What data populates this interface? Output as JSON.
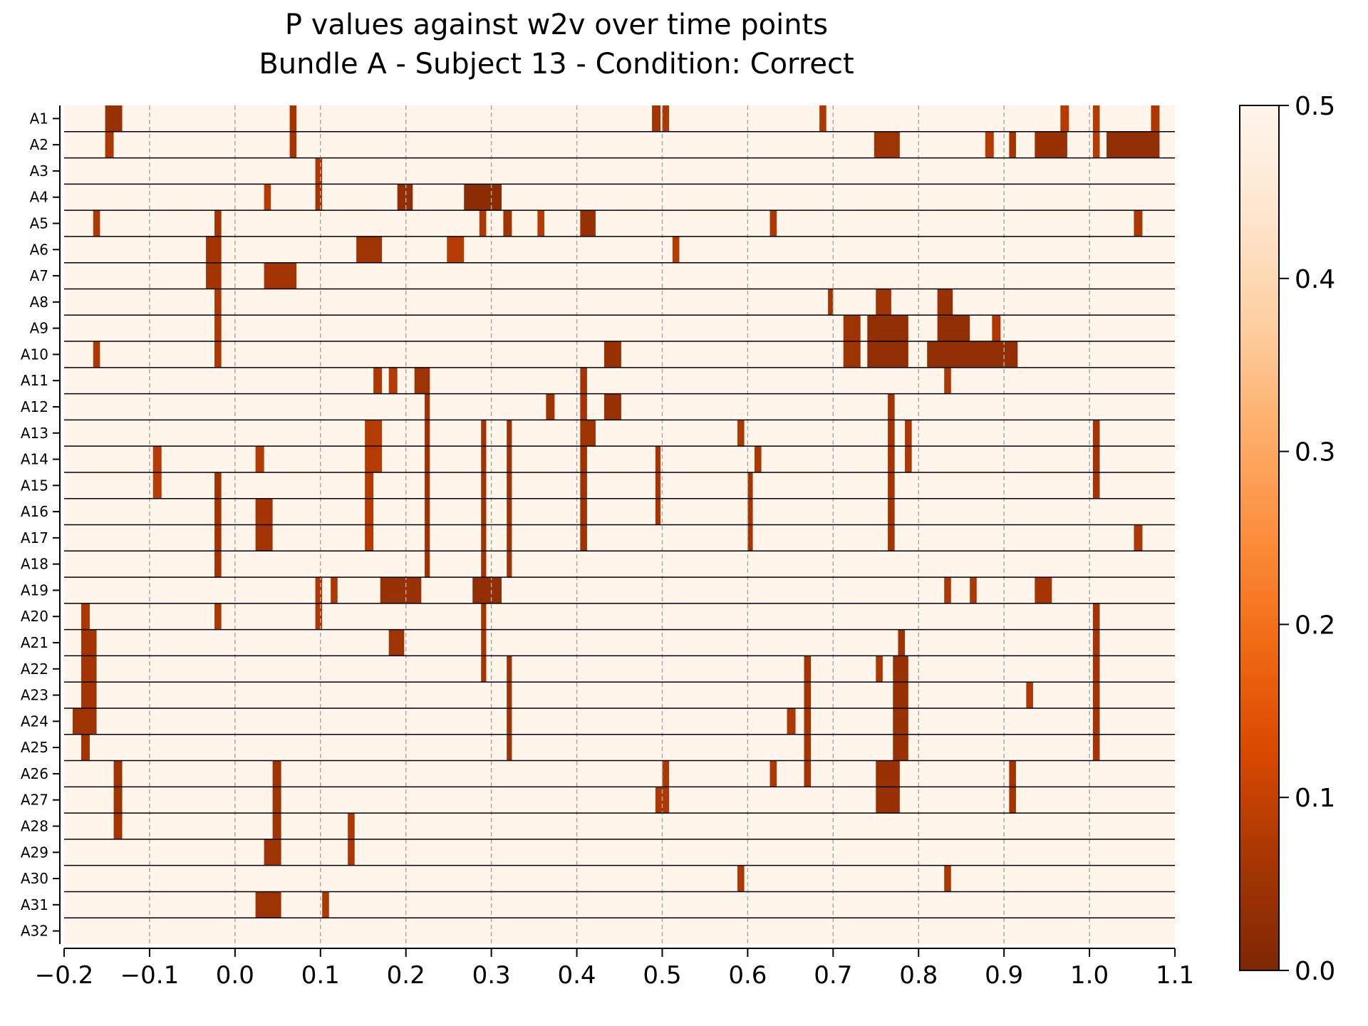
{
  "chart_data": {
    "type": "heatmap",
    "title": "P values against w2v over time points",
    "subtitle": "Bundle A - Subject 13 - Condition: Correct",
    "xlabel": "",
    "ylabel": "",
    "xlim": [
      -0.2,
      1.1
    ],
    "x_ticks": [
      "−0.2",
      "−0.1",
      "0.0",
      "0.1",
      "0.2",
      "0.3",
      "0.4",
      "0.5",
      "0.6",
      "0.7",
      "0.8",
      "0.9",
      "1.0",
      "1.1"
    ],
    "x_tick_values": [
      -0.2,
      -0.1,
      0.0,
      0.1,
      0.2,
      0.3,
      0.4,
      0.5,
      0.6,
      0.7,
      0.8,
      0.9,
      1.0,
      1.1
    ],
    "rows": [
      "A1",
      "A2",
      "A3",
      "A4",
      "A5",
      "A6",
      "A7",
      "A8",
      "A9",
      "A10",
      "A11",
      "A12",
      "A13",
      "A14",
      "A15",
      "A16",
      "A17",
      "A18",
      "A19",
      "A20",
      "A21",
      "A22",
      "A23",
      "A24",
      "A25",
      "A26",
      "A27",
      "A28",
      "A29",
      "A30",
      "A31",
      "A32"
    ],
    "colorbar": {
      "min": 0.0,
      "max": 0.5,
      "ticks": [
        "0.0",
        "0.1",
        "0.2",
        "0.3",
        "0.4",
        "0.5"
      ],
      "tick_values": [
        0.0,
        0.1,
        0.2,
        0.3,
        0.4,
        0.5
      ],
      "colormap": "Oranges_r",
      "stops": [
        "#7f2704",
        "#a63603",
        "#d94801",
        "#f16913",
        "#fd8d3c",
        "#fdae6b",
        "#fdd0a2",
        "#fee6ce",
        "#fff5eb"
      ]
    },
    "background_value": 0.5,
    "grid": "dashed vertical at x ticks",
    "significant_cells": [
      {
        "row": "A1",
        "spans": [
          [
            -0.152,
            -0.132,
            0.04
          ],
          [
            0.064,
            0.072,
            0.06
          ],
          [
            0.488,
            0.498,
            0.06
          ],
          [
            0.5,
            0.508,
            0.07
          ],
          [
            0.684,
            0.692,
            0.07
          ],
          [
            0.966,
            0.976,
            0.08
          ],
          [
            1.004,
            1.012,
            0.08
          ],
          [
            1.072,
            1.082,
            0.07
          ]
        ]
      },
      {
        "row": "A2",
        "spans": [
          [
            -0.152,
            -0.142,
            0.07
          ],
          [
            0.064,
            0.072,
            0.06
          ],
          [
            0.748,
            0.778,
            0.05
          ],
          [
            0.878,
            0.888,
            0.08
          ],
          [
            0.906,
            0.914,
            0.06
          ],
          [
            0.936,
            0.974,
            0.04
          ],
          [
            1.004,
            1.012,
            0.08
          ],
          [
            1.02,
            1.082,
            0.03
          ]
        ]
      },
      {
        "row": "A3",
        "spans": [
          [
            0.094,
            0.102,
            0.07
          ]
        ]
      },
      {
        "row": "A4",
        "spans": [
          [
            0.034,
            0.042,
            0.08
          ],
          [
            0.094,
            0.102,
            0.06
          ],
          [
            0.19,
            0.208,
            0.03
          ],
          [
            0.268,
            0.312,
            0.02
          ]
        ]
      },
      {
        "row": "A5",
        "spans": [
          [
            -0.166,
            -0.158,
            0.07
          ],
          [
            -0.024,
            -0.016,
            0.06
          ],
          [
            0.286,
            0.294,
            0.07
          ],
          [
            0.314,
            0.324,
            0.05
          ],
          [
            0.354,
            0.362,
            0.08
          ],
          [
            0.404,
            0.422,
            0.04
          ],
          [
            0.626,
            0.634,
            0.07
          ],
          [
            1.052,
            1.062,
            0.07
          ]
        ]
      },
      {
        "row": "A6",
        "spans": [
          [
            -0.034,
            -0.016,
            0.06
          ],
          [
            0.142,
            0.172,
            0.05
          ],
          [
            0.248,
            0.268,
            0.08
          ],
          [
            0.512,
            0.52,
            0.08
          ]
        ]
      },
      {
        "row": "A7",
        "spans": [
          [
            -0.034,
            -0.016,
            0.06
          ],
          [
            0.034,
            0.072,
            0.06
          ]
        ]
      },
      {
        "row": "A8",
        "spans": [
          [
            -0.024,
            -0.016,
            0.07
          ],
          [
            0.694,
            0.7,
            0.06
          ],
          [
            0.75,
            0.768,
            0.05
          ],
          [
            0.822,
            0.84,
            0.04
          ]
        ]
      },
      {
        "row": "A9",
        "spans": [
          [
            -0.024,
            -0.016,
            0.07
          ],
          [
            0.712,
            0.732,
            0.05
          ],
          [
            0.74,
            0.788,
            0.03
          ],
          [
            0.822,
            0.86,
            0.03
          ],
          [
            0.886,
            0.896,
            0.07
          ]
        ]
      },
      {
        "row": "A10",
        "spans": [
          [
            -0.166,
            -0.158,
            0.07
          ],
          [
            -0.024,
            -0.016,
            0.07
          ],
          [
            0.432,
            0.452,
            0.04
          ],
          [
            0.712,
            0.732,
            0.05
          ],
          [
            0.74,
            0.788,
            0.03
          ],
          [
            0.81,
            0.916,
            0.03
          ]
        ]
      },
      {
        "row": "A11",
        "spans": [
          [
            0.162,
            0.172,
            0.07
          ],
          [
            0.18,
            0.19,
            0.08
          ],
          [
            0.21,
            0.228,
            0.05
          ],
          [
            0.404,
            0.412,
            0.06
          ],
          [
            0.83,
            0.838,
            0.07
          ]
        ]
      },
      {
        "row": "A12",
        "spans": [
          [
            0.222,
            0.228,
            0.05
          ],
          [
            0.364,
            0.374,
            0.05
          ],
          [
            0.404,
            0.412,
            0.06
          ],
          [
            0.432,
            0.452,
            0.04
          ],
          [
            0.764,
            0.772,
            0.06
          ]
        ]
      },
      {
        "row": "A13",
        "spans": [
          [
            0.152,
            0.172,
            0.08
          ],
          [
            0.222,
            0.228,
            0.05
          ],
          [
            0.288,
            0.294,
            0.05
          ],
          [
            0.318,
            0.324,
            0.05
          ],
          [
            0.404,
            0.422,
            0.05
          ],
          [
            0.588,
            0.596,
            0.07
          ],
          [
            0.764,
            0.772,
            0.06
          ],
          [
            0.784,
            0.792,
            0.07
          ],
          [
            1.004,
            1.012,
            0.06
          ]
        ]
      },
      {
        "row": "A14",
        "spans": [
          [
            -0.096,
            -0.086,
            0.08
          ],
          [
            0.024,
            0.034,
            0.08
          ],
          [
            0.152,
            0.172,
            0.08
          ],
          [
            0.222,
            0.228,
            0.05
          ],
          [
            0.288,
            0.294,
            0.05
          ],
          [
            0.318,
            0.324,
            0.05
          ],
          [
            0.404,
            0.412,
            0.05
          ],
          [
            0.492,
            0.498,
            0.06
          ],
          [
            0.608,
            0.616,
            0.07
          ],
          [
            0.764,
            0.772,
            0.06
          ],
          [
            0.784,
            0.792,
            0.07
          ],
          [
            1.004,
            1.012,
            0.06
          ]
        ]
      },
      {
        "row": "A15",
        "spans": [
          [
            -0.096,
            -0.086,
            0.08
          ],
          [
            -0.024,
            -0.016,
            0.06
          ],
          [
            0.152,
            0.162,
            0.08
          ],
          [
            0.222,
            0.228,
            0.05
          ],
          [
            0.288,
            0.294,
            0.05
          ],
          [
            0.318,
            0.324,
            0.05
          ],
          [
            0.404,
            0.412,
            0.05
          ],
          [
            0.492,
            0.498,
            0.06
          ],
          [
            0.6,
            0.606,
            0.06
          ],
          [
            0.764,
            0.772,
            0.06
          ],
          [
            1.004,
            1.012,
            0.06
          ]
        ]
      },
      {
        "row": "A16",
        "spans": [
          [
            -0.024,
            -0.016,
            0.06
          ],
          [
            0.024,
            0.044,
            0.06
          ],
          [
            0.152,
            0.162,
            0.08
          ],
          [
            0.222,
            0.228,
            0.05
          ],
          [
            0.288,
            0.294,
            0.05
          ],
          [
            0.318,
            0.324,
            0.05
          ],
          [
            0.404,
            0.412,
            0.05
          ],
          [
            0.492,
            0.498,
            0.06
          ],
          [
            0.6,
            0.606,
            0.06
          ],
          [
            0.764,
            0.772,
            0.06
          ]
        ]
      },
      {
        "row": "A17",
        "spans": [
          [
            -0.024,
            -0.016,
            0.06
          ],
          [
            0.024,
            0.044,
            0.06
          ],
          [
            0.152,
            0.162,
            0.08
          ],
          [
            0.222,
            0.228,
            0.05
          ],
          [
            0.288,
            0.294,
            0.05
          ],
          [
            0.318,
            0.324,
            0.05
          ],
          [
            0.404,
            0.412,
            0.05
          ],
          [
            0.6,
            0.606,
            0.06
          ],
          [
            0.764,
            0.772,
            0.06
          ],
          [
            1.052,
            1.062,
            0.07
          ]
        ]
      },
      {
        "row": "A18",
        "spans": [
          [
            -0.024,
            -0.016,
            0.06
          ],
          [
            0.222,
            0.228,
            0.05
          ],
          [
            0.288,
            0.294,
            0.05
          ],
          [
            0.318,
            0.324,
            0.05
          ]
        ]
      },
      {
        "row": "A19",
        "spans": [
          [
            0.094,
            0.102,
            0.07
          ],
          [
            0.112,
            0.12,
            0.07
          ],
          [
            0.17,
            0.218,
            0.04
          ],
          [
            0.278,
            0.312,
            0.03
          ],
          [
            0.83,
            0.838,
            0.07
          ],
          [
            0.86,
            0.868,
            0.07
          ],
          [
            0.936,
            0.956,
            0.06
          ]
        ]
      },
      {
        "row": "A20",
        "spans": [
          [
            -0.18,
            -0.17,
            0.07
          ],
          [
            -0.024,
            -0.016,
            0.07
          ],
          [
            0.094,
            0.102,
            0.07
          ],
          [
            0.288,
            0.294,
            0.06
          ],
          [
            1.004,
            1.012,
            0.06
          ]
        ]
      },
      {
        "row": "A21",
        "spans": [
          [
            -0.18,
            -0.162,
            0.06
          ],
          [
            0.18,
            0.198,
            0.05
          ],
          [
            0.288,
            0.294,
            0.06
          ],
          [
            0.776,
            0.784,
            0.05
          ],
          [
            1.004,
            1.012,
            0.06
          ]
        ]
      },
      {
        "row": "A22",
        "spans": [
          [
            -0.18,
            -0.162,
            0.06
          ],
          [
            0.288,
            0.294,
            0.06
          ],
          [
            0.318,
            0.324,
            0.05
          ],
          [
            0.666,
            0.674,
            0.06
          ],
          [
            0.75,
            0.758,
            0.07
          ],
          [
            0.77,
            0.788,
            0.04
          ],
          [
            1.004,
            1.012,
            0.06
          ]
        ]
      },
      {
        "row": "A23",
        "spans": [
          [
            -0.18,
            -0.162,
            0.06
          ],
          [
            0.318,
            0.324,
            0.05
          ],
          [
            0.666,
            0.674,
            0.06
          ],
          [
            0.77,
            0.788,
            0.04
          ],
          [
            0.926,
            0.934,
            0.07
          ],
          [
            1.004,
            1.012,
            0.06
          ]
        ]
      },
      {
        "row": "A24",
        "spans": [
          [
            -0.19,
            -0.162,
            0.05
          ],
          [
            0.318,
            0.324,
            0.05
          ],
          [
            0.646,
            0.656,
            0.07
          ],
          [
            0.666,
            0.674,
            0.06
          ],
          [
            0.77,
            0.788,
            0.04
          ],
          [
            1.004,
            1.012,
            0.06
          ]
        ]
      },
      {
        "row": "A25",
        "spans": [
          [
            -0.18,
            -0.17,
            0.06
          ],
          [
            0.318,
            0.324,
            0.05
          ],
          [
            0.666,
            0.674,
            0.06
          ],
          [
            0.77,
            0.788,
            0.04
          ],
          [
            1.004,
            1.012,
            0.06
          ]
        ]
      },
      {
        "row": "A26",
        "spans": [
          [
            -0.142,
            -0.132,
            0.05
          ],
          [
            0.044,
            0.054,
            0.05
          ],
          [
            0.5,
            0.508,
            0.07
          ],
          [
            0.626,
            0.634,
            0.07
          ],
          [
            0.666,
            0.674,
            0.06
          ],
          [
            0.75,
            0.778,
            0.04
          ],
          [
            0.906,
            0.914,
            0.06
          ]
        ]
      },
      {
        "row": "A27",
        "spans": [
          [
            -0.142,
            -0.132,
            0.05
          ],
          [
            0.044,
            0.054,
            0.05
          ],
          [
            0.492,
            0.508,
            0.07
          ],
          [
            0.75,
            0.778,
            0.04
          ],
          [
            0.906,
            0.914,
            0.06
          ]
        ]
      },
      {
        "row": "A28",
        "spans": [
          [
            -0.142,
            -0.132,
            0.06
          ],
          [
            0.044,
            0.054,
            0.05
          ],
          [
            0.132,
            0.14,
            0.07
          ]
        ]
      },
      {
        "row": "A29",
        "spans": [
          [
            0.034,
            0.054,
            0.05
          ],
          [
            0.132,
            0.14,
            0.07
          ]
        ]
      },
      {
        "row": "A30",
        "spans": [
          [
            0.588,
            0.596,
            0.07
          ],
          [
            0.83,
            0.838,
            0.07
          ]
        ]
      },
      {
        "row": "A31",
        "spans": [
          [
            0.024,
            0.054,
            0.05
          ],
          [
            0.102,
            0.11,
            0.07
          ]
        ]
      },
      {
        "row": "A32",
        "spans": []
      }
    ]
  }
}
